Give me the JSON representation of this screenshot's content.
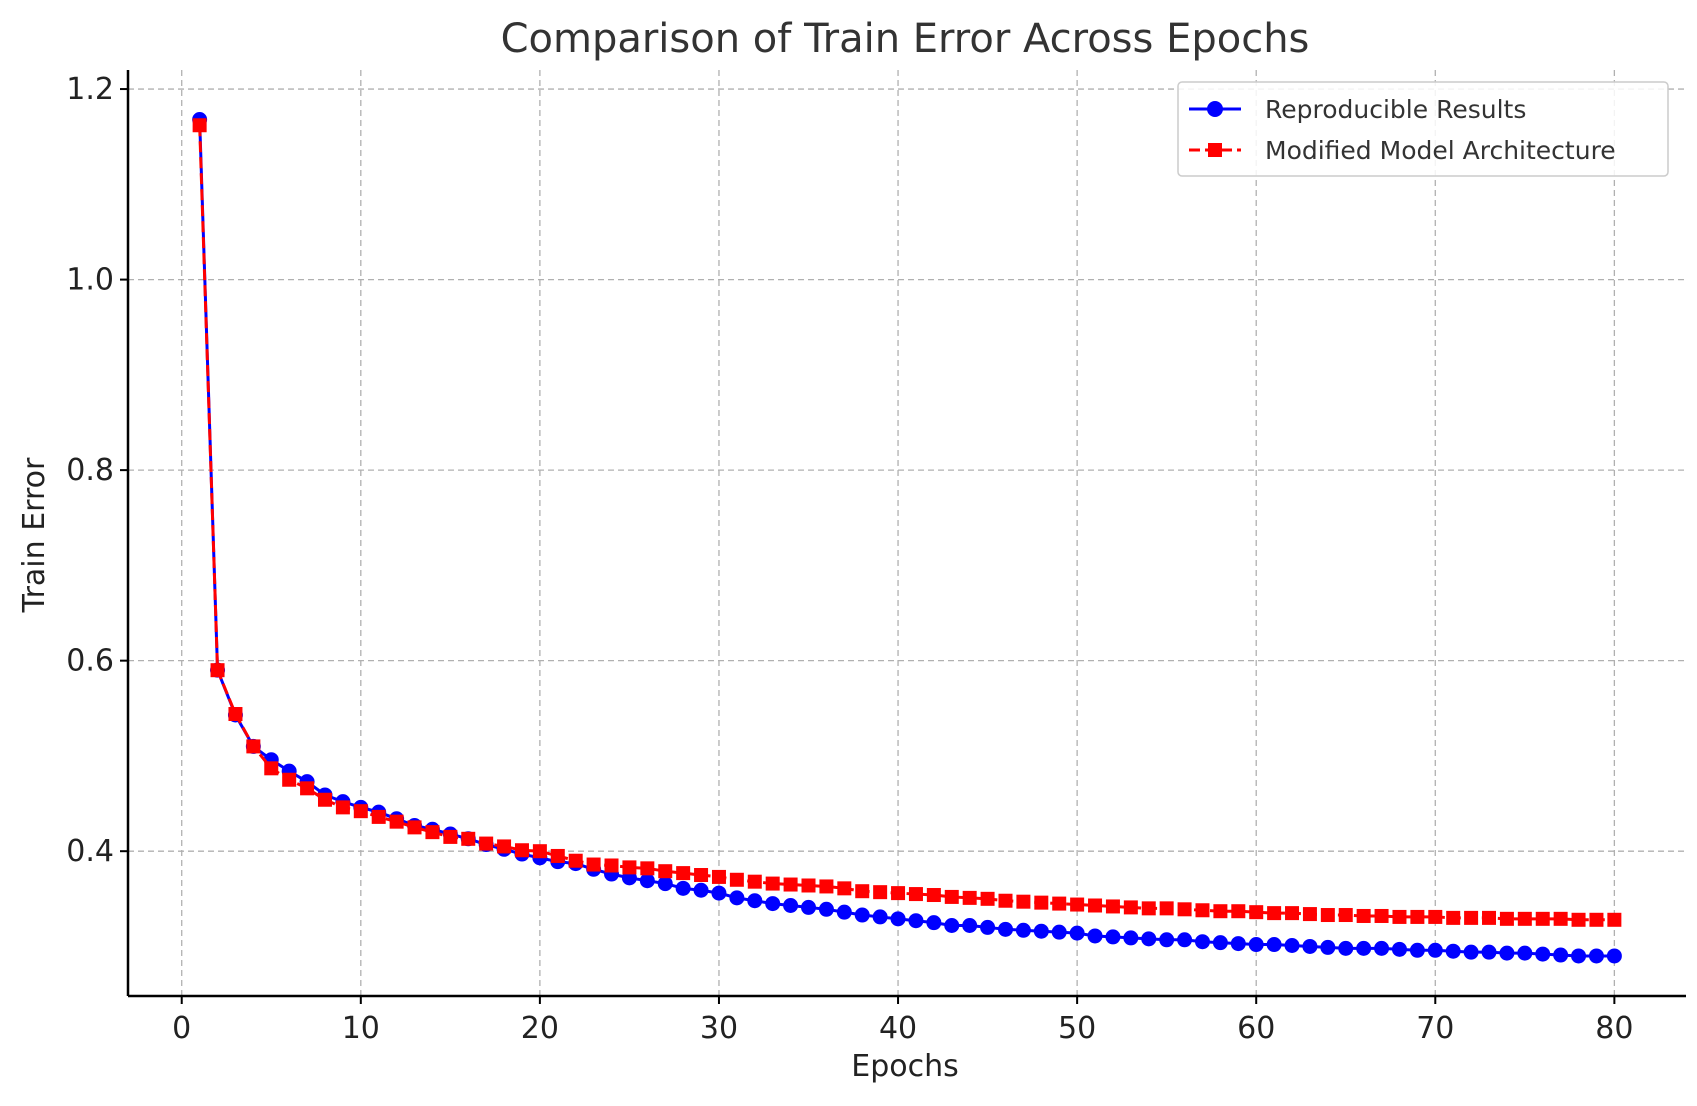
{
  "chart_data": {
    "type": "line",
    "title": "Comparison of Train Error Across Epochs",
    "xlabel": "Epochs",
    "ylabel": "Train Error",
    "xlim": [
      -3,
      84
    ],
    "ylim": [
      0.248,
      1.22
    ],
    "xticks": [
      0,
      10,
      20,
      30,
      40,
      50,
      60,
      70,
      80
    ],
    "xtick_labels": [
      "0",
      "10",
      "20",
      "30",
      "40",
      "50",
      "60",
      "70",
      "80"
    ],
    "yticks": [
      0.4,
      0.6,
      0.8,
      1.0,
      1.2
    ],
    "ytick_labels": [
      "0.4",
      "0.6",
      "0.8",
      "1.0",
      "1.2"
    ],
    "grid": true,
    "legend_position": "top-right",
    "x": [
      1,
      2,
      3,
      4,
      5,
      6,
      7,
      8,
      9,
      10,
      11,
      12,
      13,
      14,
      15,
      16,
      17,
      18,
      19,
      20,
      21,
      22,
      23,
      24,
      25,
      26,
      27,
      28,
      29,
      30,
      31,
      32,
      33,
      34,
      35,
      36,
      37,
      38,
      39,
      40,
      41,
      42,
      43,
      44,
      45,
      46,
      47,
      48,
      49,
      50,
      51,
      52,
      53,
      54,
      55,
      56,
      57,
      58,
      59,
      60,
      61,
      62,
      63,
      64,
      65,
      66,
      67,
      68,
      69,
      70,
      71,
      72,
      73,
      74,
      75,
      76,
      77,
      78,
      79,
      80
    ],
    "series": [
      {
        "name": "Reproducible Results",
        "color": "#0000ff",
        "marker": "circle",
        "linestyle": "solid",
        "values": [
          1.168,
          0.59,
          0.543,
          0.51,
          0.496,
          0.484,
          0.473,
          0.459,
          0.452,
          0.446,
          0.441,
          0.434,
          0.427,
          0.423,
          0.418,
          0.413,
          0.407,
          0.402,
          0.397,
          0.393,
          0.389,
          0.387,
          0.381,
          0.376,
          0.372,
          0.369,
          0.366,
          0.361,
          0.359,
          0.356,
          0.351,
          0.348,
          0.345,
          0.343,
          0.341,
          0.339,
          0.336,
          0.333,
          0.331,
          0.329,
          0.327,
          0.325,
          0.322,
          0.322,
          0.32,
          0.318,
          0.317,
          0.316,
          0.315,
          0.314,
          0.311,
          0.31,
          0.309,
          0.308,
          0.307,
          0.307,
          0.305,
          0.304,
          0.303,
          0.302,
          0.302,
          0.301,
          0.3,
          0.299,
          0.298,
          0.298,
          0.298,
          0.297,
          0.296,
          0.296,
          0.295,
          0.294,
          0.294,
          0.293,
          0.293,
          0.292,
          0.291,
          0.29,
          0.29,
          0.29
        ]
      },
      {
        "name": "Modified Model Architecture",
        "color": "#ff0000",
        "marker": "square",
        "linestyle": "dashed",
        "values": [
          1.162,
          0.59,
          0.544,
          0.51,
          0.487,
          0.475,
          0.466,
          0.454,
          0.446,
          0.442,
          0.436,
          0.431,
          0.425,
          0.42,
          0.415,
          0.413,
          0.408,
          0.405,
          0.401,
          0.4,
          0.395,
          0.39,
          0.386,
          0.385,
          0.383,
          0.382,
          0.379,
          0.377,
          0.375,
          0.373,
          0.37,
          0.368,
          0.366,
          0.365,
          0.364,
          0.363,
          0.361,
          0.358,
          0.357,
          0.356,
          0.355,
          0.354,
          0.352,
          0.351,
          0.35,
          0.348,
          0.347,
          0.346,
          0.345,
          0.344,
          0.343,
          0.342,
          0.341,
          0.34,
          0.34,
          0.339,
          0.338,
          0.337,
          0.337,
          0.336,
          0.335,
          0.335,
          0.334,
          0.333,
          0.333,
          0.332,
          0.332,
          0.331,
          0.331,
          0.331,
          0.33,
          0.33,
          0.33,
          0.329,
          0.329,
          0.329,
          0.329,
          0.328,
          0.328,
          0.328
        ]
      }
    ]
  }
}
